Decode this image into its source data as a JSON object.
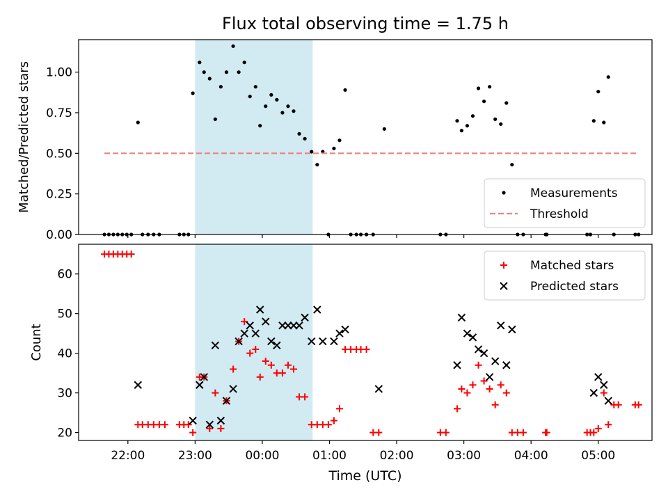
{
  "figure": {
    "title": "Flux total observing time = 1.75 h",
    "xlabel": "Time (UTC)"
  },
  "chart_data": [
    {
      "type": "scatter",
      "panel": "top",
      "title": "Flux total observing time = 1.75 h",
      "xlabel": "",
      "ylabel": "Matched/Predicted stars",
      "x_is_time": true,
      "xlim": [
        "21:16",
        "05:48"
      ],
      "ylim": [
        0,
        1.2
      ],
      "yticks": [
        "0.00",
        "0.25",
        "0.50",
        "0.75",
        "1.00"
      ],
      "ytick_values": [
        0,
        0.25,
        0.5,
        0.75,
        1.0
      ],
      "highlight_span": {
        "from": "23:00",
        "to": "00:45",
        "color": "#add8e6"
      },
      "legend_position": "lower right",
      "series": [
        {
          "name": "Measurements",
          "marker": "dot",
          "color": "#000000",
          "points": [
            [
              "21:39",
              0
            ],
            [
              "21:43",
              0
            ],
            [
              "21:47",
              0
            ],
            [
              "21:51",
              0
            ],
            [
              "21:55",
              0
            ],
            [
              "21:59",
              0
            ],
            [
              "22:03",
              0
            ],
            [
              "22:09",
              0.69
            ],
            [
              "22:13",
              0
            ],
            [
              "22:18",
              0
            ],
            [
              "22:23",
              0
            ],
            [
              "22:28",
              0
            ],
            [
              "22:46",
              0
            ],
            [
              "22:50",
              0
            ],
            [
              "22:54",
              0
            ],
            [
              "22:58",
              0.87
            ],
            [
              "23:04",
              1.06
            ],
            [
              "23:08",
              1.0
            ],
            [
              "23:13",
              0.96
            ],
            [
              "23:18",
              0.71
            ],
            [
              "23:23",
              0.91
            ],
            [
              "23:28",
              1.0
            ],
            [
              "23:34",
              1.16
            ],
            [
              "23:39",
              1.0
            ],
            [
              "23:44",
              1.06
            ],
            [
              "23:49",
              0.85
            ],
            [
              "23:54",
              0.91
            ],
            [
              "23:58",
              0.67
            ],
            [
              "00:03",
              0.79
            ],
            [
              "00:08",
              0.86
            ],
            [
              "00:13",
              0.83
            ],
            [
              "00:18",
              0.75
            ],
            [
              "00:23",
              0.79
            ],
            [
              "00:28",
              0.76
            ],
            [
              "00:33",
              0.62
            ],
            [
              "00:38",
              0.59
            ],
            [
              "00:44",
              0.51
            ],
            [
              "00:49",
              0.43
            ],
            [
              "00:54",
              0.51
            ],
            [
              "00:59",
              0
            ],
            [
              "01:04",
              0.53
            ],
            [
              "01:09",
              0.58
            ],
            [
              "01:14",
              0.89
            ],
            [
              "01:19",
              0
            ],
            [
              "01:24",
              0
            ],
            [
              "01:28",
              0
            ],
            [
              "01:33",
              0
            ],
            [
              "01:39",
              0
            ],
            [
              "01:49",
              0.65
            ],
            [
              "02:39",
              0
            ],
            [
              "02:44",
              0
            ],
            [
              "02:54",
              0.7
            ],
            [
              "02:58",
              0.64
            ],
            [
              "03:03",
              0.67
            ],
            [
              "03:08",
              0.73
            ],
            [
              "03:13",
              0.9
            ],
            [
              "03:18",
              0.82
            ],
            [
              "03:23",
              0.91
            ],
            [
              "03:28",
              0.71
            ],
            [
              "03:33",
              0.68
            ],
            [
              "03:38",
              0.81
            ],
            [
              "03:43",
              0.43
            ],
            [
              "03:48",
              0
            ],
            [
              "03:53",
              0
            ],
            [
              "04:13",
              0
            ],
            [
              "04:14",
              0
            ],
            [
              "04:50",
              0
            ],
            [
              "04:53",
              0
            ],
            [
              "04:56",
              0.7
            ],
            [
              "05:00",
              0.88
            ],
            [
              "05:05",
              0.69
            ],
            [
              "05:09",
              0.97
            ],
            [
              "05:14",
              0
            ],
            [
              "05:33",
              0
            ],
            [
              "05:36",
              0
            ]
          ]
        },
        {
          "name": "Threshold",
          "marker": "dashed-line",
          "color": "#f08080",
          "points": [
            [
              "21:39",
              0.5
            ],
            [
              "05:36",
              0.5
            ]
          ]
        }
      ]
    },
    {
      "type": "scatter",
      "panel": "bottom",
      "xlabel": "Time (UTC)",
      "ylabel": "Count",
      "x_is_time": true,
      "xlim": [
        "21:16",
        "05:48"
      ],
      "ylim": [
        18,
        67.5
      ],
      "xticks": [
        "22:00",
        "23:00",
        "00:00",
        "01:00",
        "02:00",
        "03:00",
        "04:00",
        "05:00"
      ],
      "yticks": [
        "20",
        "30",
        "40",
        "50",
        "60"
      ],
      "ytick_values": [
        20,
        30,
        40,
        50,
        60
      ],
      "highlight_span": {
        "from": "23:00",
        "to": "00:45",
        "color": "#add8e6"
      },
      "legend_position": "upper right",
      "series": [
        {
          "name": "Matched stars",
          "marker": "plus",
          "color": "#ff0000",
          "points": [
            [
              "21:39",
              65
            ],
            [
              "21:43",
              65
            ],
            [
              "21:47",
              65
            ],
            [
              "21:51",
              65
            ],
            [
              "21:55",
              65
            ],
            [
              "21:59",
              65
            ],
            [
              "22:03",
              65
            ],
            [
              "22:09",
              22
            ],
            [
              "22:13",
              22
            ],
            [
              "22:18",
              22
            ],
            [
              "22:23",
              22
            ],
            [
              "22:28",
              22
            ],
            [
              "22:33",
              22
            ],
            [
              "22:46",
              22
            ],
            [
              "22:50",
              22
            ],
            [
              "22:54",
              22
            ],
            [
              "22:58",
              20
            ],
            [
              "23:04",
              34
            ],
            [
              "23:08",
              34
            ],
            [
              "23:13",
              21
            ],
            [
              "23:18",
              30
            ],
            [
              "23:23",
              21
            ],
            [
              "23:28",
              28
            ],
            [
              "23:34",
              36
            ],
            [
              "23:39",
              43
            ],
            [
              "23:44",
              48
            ],
            [
              "23:49",
              40
            ],
            [
              "23:54",
              41
            ],
            [
              "23:58",
              34
            ],
            [
              "00:03",
              38
            ],
            [
              "00:08",
              37
            ],
            [
              "00:13",
              35
            ],
            [
              "00:18",
              35
            ],
            [
              "00:23",
              37
            ],
            [
              "00:28",
              36
            ],
            [
              "00:33",
              29
            ],
            [
              "00:38",
              29
            ],
            [
              "00:44",
              22
            ],
            [
              "00:49",
              22
            ],
            [
              "00:54",
              22
            ],
            [
              "00:59",
              22
            ],
            [
              "01:04",
              23
            ],
            [
              "01:09",
              26
            ],
            [
              "01:14",
              41
            ],
            [
              "01:19",
              41
            ],
            [
              "01:24",
              41
            ],
            [
              "01:28",
              41
            ],
            [
              "01:33",
              41
            ],
            [
              "01:39",
              20
            ],
            [
              "01:44",
              20
            ],
            [
              "02:39",
              20
            ],
            [
              "02:44",
              20
            ],
            [
              "02:54",
              26
            ],
            [
              "02:58",
              31
            ],
            [
              "03:03",
              30
            ],
            [
              "03:08",
              32
            ],
            [
              "03:13",
              37
            ],
            [
              "03:18",
              33
            ],
            [
              "03:23",
              31
            ],
            [
              "03:28",
              27
            ],
            [
              "03:33",
              32
            ],
            [
              "03:38",
              30
            ],
            [
              "03:43",
              20
            ],
            [
              "03:48",
              20
            ],
            [
              "03:53",
              20
            ],
            [
              "04:13",
              20
            ],
            [
              "04:14",
              20
            ],
            [
              "04:50",
              20
            ],
            [
              "04:53",
              20
            ],
            [
              "04:56",
              20
            ],
            [
              "05:00",
              21
            ],
            [
              "05:05",
              30
            ],
            [
              "05:09",
              22
            ],
            [
              "05:14",
              27
            ],
            [
              "05:18",
              27
            ],
            [
              "05:33",
              27
            ],
            [
              "05:36",
              27
            ]
          ]
        },
        {
          "name": "Predicted stars",
          "marker": "x",
          "color": "#000000",
          "points": [
            [
              "22:09",
              32
            ],
            [
              "22:58",
              23
            ],
            [
              "23:04",
              32
            ],
            [
              "23:08",
              34
            ],
            [
              "23:13",
              22
            ],
            [
              "23:18",
              42
            ],
            [
              "23:23",
              23
            ],
            [
              "23:28",
              28
            ],
            [
              "23:34",
              31
            ],
            [
              "23:39",
              43
            ],
            [
              "23:44",
              45
            ],
            [
              "23:49",
              47
            ],
            [
              "23:54",
              45
            ],
            [
              "23:58",
              51
            ],
            [
              "00:03",
              48
            ],
            [
              "00:08",
              43
            ],
            [
              "00:13",
              42
            ],
            [
              "00:18",
              47
            ],
            [
              "00:23",
              47
            ],
            [
              "00:28",
              47
            ],
            [
              "00:33",
              47
            ],
            [
              "00:38",
              49
            ],
            [
              "00:44",
              43
            ],
            [
              "00:49",
              51
            ],
            [
              "00:54",
              43
            ],
            [
              "01:04",
              43
            ],
            [
              "01:09",
              45
            ],
            [
              "01:14",
              46
            ],
            [
              "01:44",
              31
            ],
            [
              "02:54",
              37
            ],
            [
              "02:58",
              49
            ],
            [
              "03:03",
              45
            ],
            [
              "03:08",
              44
            ],
            [
              "03:13",
              41
            ],
            [
              "03:18",
              40
            ],
            [
              "03:23",
              34
            ],
            [
              "03:28",
              38
            ],
            [
              "03:33",
              47
            ],
            [
              "03:38",
              37
            ],
            [
              "03:43",
              46
            ],
            [
              "04:56",
              30
            ],
            [
              "05:00",
              34
            ],
            [
              "05:05",
              32
            ],
            [
              "05:09",
              28
            ]
          ]
        }
      ]
    }
  ]
}
